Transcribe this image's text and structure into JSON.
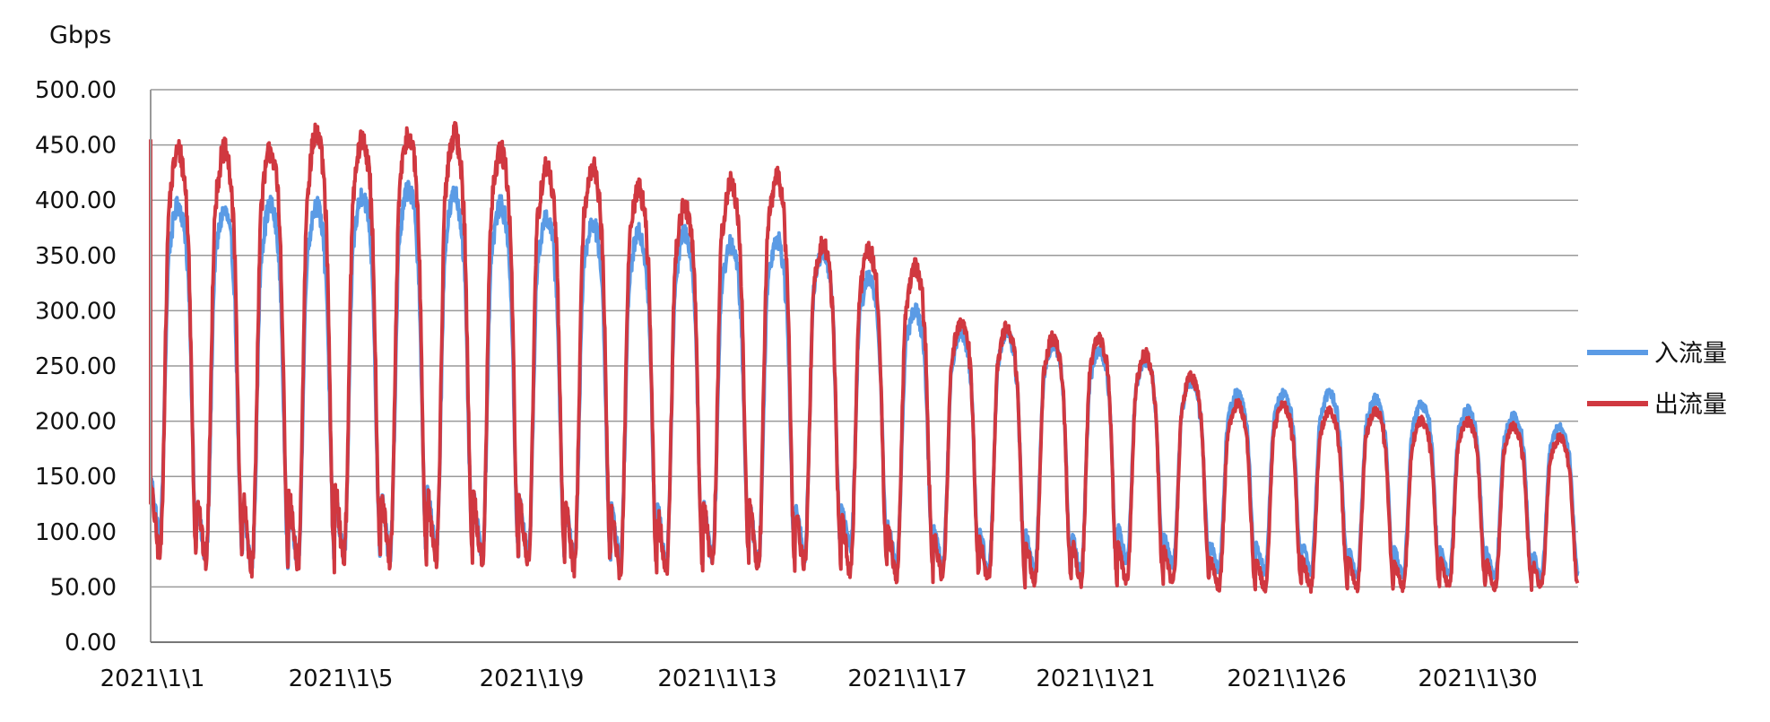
{
  "chart_data": {
    "type": "line",
    "ylabel": "Gbps",
    "ylim": [
      0,
      500
    ],
    "yticks": [
      "0.00",
      "50.00",
      "100.00",
      "150.00",
      "200.00",
      "250.00",
      "300.00",
      "350.00",
      "400.00",
      "450.00",
      "500.00"
    ],
    "xticks": [
      "2021\\1\\1",
      "2021\\1\\5",
      "2021\\1\\9",
      "2021\\1\\13",
      "2021\\1\\17",
      "2021\\1\\21",
      "2021\\1\\26",
      "2021\\1\\30"
    ],
    "grid": "horizontal",
    "legend_position": "right",
    "series": [
      {
        "name": "入流量",
        "color": "#5b9be5",
        "daily_low": [
          100,
          75,
          70,
          75,
          80,
          80,
          85,
          80,
          80,
          75,
          75,
          75,
          80,
          75,
          80,
          85,
          70,
          70,
          65,
          65,
          65,
          75,
          70,
          65,
          65,
          65,
          60,
          60,
          60,
          60,
          60
        ],
        "daily_high": [
          395,
          390,
          395,
          395,
          405,
          410,
          405,
          395,
          385,
          380,
          370,
          370,
          360,
          365,
          355,
          330,
          300,
          280,
          280,
          270,
          265,
          255,
          235,
          225,
          225,
          225,
          220,
          215,
          210,
          205,
          195
        ]
      },
      {
        "name": "出流量",
        "color": "#d03840",
        "daily_low": [
          80,
          75,
          70,
          70,
          80,
          75,
          75,
          75,
          75,
          70,
          65,
          65,
          70,
          70,
          70,
          65,
          60,
          60,
          55,
          55,
          55,
          55,
          55,
          50,
          50,
          50,
          50,
          50,
          50,
          50,
          50
        ],
        "daily_high": [
          445,
          445,
          445,
          460,
          455,
          460,
          460,
          445,
          430,
          430,
          410,
          395,
          415,
          420,
          360,
          355,
          340,
          290,
          285,
          275,
          275,
          260,
          240,
          215,
          215,
          210,
          210,
          200,
          200,
          195,
          185
        ]
      }
    ]
  }
}
